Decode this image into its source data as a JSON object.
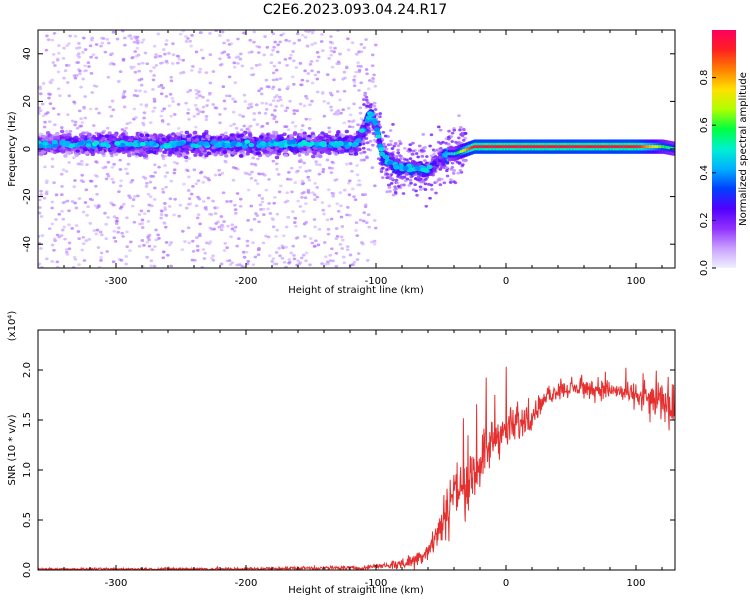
{
  "title": "C2E6.2023.093.04.24.R17",
  "colorbar": {
    "label": "Normalized spectral amplitude",
    "ticks": [
      "0.0",
      "0.2",
      "0.4",
      "0.6",
      "0.8"
    ],
    "tick_values": [
      0.0,
      0.2,
      0.4,
      0.6,
      0.8
    ],
    "range": [
      0,
      1
    ],
    "colormap": [
      "#f0f0ff",
      "#c8a0ff",
      "#9030ff",
      "#5000ff",
      "#0040ff",
      "#00b0ff",
      "#00f0d0",
      "#00ff40",
      "#b0ff00",
      "#ffe000",
      "#ff8000",
      "#ff2020",
      "#ff0060"
    ]
  },
  "colors": {
    "snr_line": "#e53030",
    "spectro_core": "#5000ff",
    "spectro_scatter": "#a060ff"
  },
  "chart_data": [
    {
      "type": "heatmap",
      "name": "spectrogram",
      "xlabel": "Height of straight line (km)",
      "ylabel": "Frequency (Hz)",
      "xlim": [
        -360,
        130
      ],
      "ylim": [
        -50,
        50
      ],
      "x_ticks": [
        -300,
        -200,
        -100,
        0,
        100
      ],
      "x_tick_labels": [
        "-300",
        "-200",
        "-100",
        "0",
        "100"
      ],
      "y_ticks": [
        -40,
        -20,
        0,
        20,
        40
      ],
      "y_tick_labels": [
        "-40",
        "-20",
        "0",
        "20",
        "40"
      ],
      "ridge": {
        "x": [
          -360,
          -300,
          -200,
          -150,
          -115,
          -108,
          -104,
          -100,
          -95,
          -90,
          -85,
          -80,
          -70,
          -60,
          -50,
          -45,
          -40,
          -30,
          -25,
          -20,
          0,
          50,
          100,
          120,
          130
        ],
        "freq": [
          2,
          2,
          2,
          2,
          2,
          10,
          15,
          10,
          -3,
          -5,
          -7,
          -8,
          -8,
          -9,
          -4,
          -2,
          -2,
          0,
          1,
          1,
          1,
          1,
          1,
          1,
          0
        ],
        "amplitude": [
          0.25,
          0.3,
          0.3,
          0.3,
          0.3,
          0.3,
          0.4,
          0.3,
          0.35,
          0.35,
          0.35,
          0.35,
          0.35,
          0.3,
          0.3,
          0.45,
          0.5,
          0.85,
          0.95,
          0.95,
          0.95,
          0.95,
          0.95,
          0.6,
          0.5
        ]
      }
    },
    {
      "type": "line",
      "name": "snr",
      "xlabel": "Height of straight line (km)",
      "ylabel": "SNR (10 * v/v)",
      "y_multiplier": "(x10⁴)",
      "xlim": [
        -360,
        130
      ],
      "ylim": [
        0,
        2.4
      ],
      "x_ticks": [
        -300,
        -200,
        -100,
        0,
        100
      ],
      "x_tick_labels": [
        "-300",
        "-200",
        "-100",
        "0",
        "100"
      ],
      "y_ticks": [
        0.0,
        0.5,
        1.0,
        1.5,
        2.0
      ],
      "y_tick_labels": [
        "0.0",
        "0.5",
        "1.0",
        "1.5",
        "2.0"
      ],
      "envelope": {
        "x": [
          -360,
          -200,
          -150,
          -110,
          -100,
          -90,
          -80,
          -70,
          -60,
          -50,
          -45,
          -40,
          -35,
          -30,
          -25,
          -20,
          -15,
          -10,
          0,
          10,
          20,
          30,
          40,
          60,
          80,
          100,
          110,
          120,
          130
        ],
        "y": [
          0.01,
          0.01,
          0.02,
          0.02,
          0.04,
          0.05,
          0.06,
          0.1,
          0.2,
          0.45,
          0.65,
          0.8,
          0.85,
          0.75,
          0.95,
          1.1,
          1.2,
          1.3,
          1.4,
          1.45,
          1.55,
          1.7,
          1.8,
          1.82,
          1.8,
          1.75,
          1.7,
          1.7,
          1.65
        ]
      },
      "noise": {
        "x": [
          -360,
          -100,
          -60,
          -50,
          -40,
          -30,
          -20,
          0,
          30,
          100,
          130
        ],
        "amp": [
          0.01,
          0.03,
          0.15,
          0.3,
          0.45,
          0.35,
          0.35,
          0.3,
          0.1,
          0.15,
          0.35
        ]
      }
    }
  ]
}
